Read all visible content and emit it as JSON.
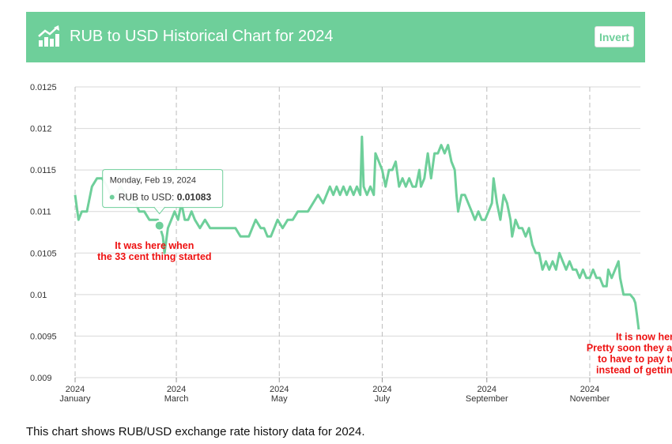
{
  "header": {
    "title": "RUB to USD Historical Chart for 2024",
    "invert_label": "Invert",
    "icon": "chart-growth-icon",
    "background": "#6ecf9a"
  },
  "caption": "This chart shows RUB/USD exchange rate history data for 2024.",
  "tooltip": {
    "date": "Monday, Feb 19, 2024",
    "series_label": "RUB to USD:",
    "value_text": "0.01083",
    "x": 50,
    "y": 0.01083
  },
  "annotations": [
    {
      "lines": [
        "It was here when",
        "the 33 cent thing started"
      ],
      "x": 47,
      "y": 0.01055
    },
    {
      "lines": [
        "It is now here.",
        "Pretty soon they are going",
        "to have to pay to post",
        "instead of getting paid"
      ],
      "x": 340,
      "y": 0.00945
    }
  ],
  "chart_data": {
    "type": "line",
    "title": "RUB to USD Historical Chart for 2024",
    "xlabel": "",
    "ylabel": "",
    "line_color": "#6ecf9a",
    "xlim": [
      0,
      335
    ],
    "ylim": [
      0.009,
      0.0125
    ],
    "y_ticks": [
      0.009,
      0.0095,
      0.01,
      0.0105,
      0.011,
      0.0115,
      0.012,
      0.0125
    ],
    "y_tick_labels": [
      "0.009",
      "0.0095",
      "0.01",
      "0.0105",
      "0.011",
      "0.0115",
      "0.012",
      "0.0125"
    ],
    "x_ticks": [
      {
        "x": 0,
        "label": [
          "2024",
          "January"
        ]
      },
      {
        "x": 60,
        "label": [
          "2024",
          "March"
        ]
      },
      {
        "x": 121,
        "label": [
          "2024",
          "May"
        ]
      },
      {
        "x": 182,
        "label": [
          "2024",
          "July"
        ]
      },
      {
        "x": 244,
        "label": [
          "2024",
          "September"
        ]
      },
      {
        "x": 305,
        "label": [
          "2024",
          "November"
        ]
      }
    ],
    "grid": true,
    "series": [
      {
        "values": [
          [
            0,
            0.0112
          ],
          [
            2,
            0.0109
          ],
          [
            4,
            0.011
          ],
          [
            7,
            0.011
          ],
          [
            10,
            0.0113
          ],
          [
            13,
            0.0114
          ],
          [
            16,
            0.0114
          ],
          [
            19,
            0.0113
          ],
          [
            21,
            0.0112
          ],
          [
            24,
            0.0112
          ],
          [
            27,
            0.0113
          ],
          [
            30,
            0.0112
          ],
          [
            33,
            0.0111
          ],
          [
            36,
            0.0111
          ],
          [
            38,
            0.011
          ],
          [
            41,
            0.011
          ],
          [
            44,
            0.0109
          ],
          [
            47,
            0.0109
          ],
          [
            49,
            0.0109
          ],
          [
            50,
            0.01083
          ],
          [
            52,
            0.0107
          ],
          [
            53,
            0.0105
          ],
          [
            55,
            0.0108
          ],
          [
            57,
            0.0109
          ],
          [
            59,
            0.011
          ],
          [
            61,
            0.0109
          ],
          [
            63,
            0.0111
          ],
          [
            65,
            0.0109
          ],
          [
            67,
            0.0109
          ],
          [
            69,
            0.011
          ],
          [
            71,
            0.0109
          ],
          [
            74,
            0.0108
          ],
          [
            77,
            0.0109
          ],
          [
            80,
            0.0108
          ],
          [
            84,
            0.0108
          ],
          [
            88,
            0.0108
          ],
          [
            92,
            0.0108
          ],
          [
            95,
            0.0108
          ],
          [
            98,
            0.0107
          ],
          [
            100,
            0.0107
          ],
          [
            103,
            0.0107
          ],
          [
            105,
            0.0108
          ],
          [
            107,
            0.0109
          ],
          [
            110,
            0.0108
          ],
          [
            112,
            0.0108
          ],
          [
            114,
            0.0107
          ],
          [
            116,
            0.0107
          ],
          [
            118,
            0.0108
          ],
          [
            120,
            0.0109
          ],
          [
            123,
            0.0108
          ],
          [
            126,
            0.0109
          ],
          [
            129,
            0.0109
          ],
          [
            132,
            0.011
          ],
          [
            135,
            0.011
          ],
          [
            138,
            0.011
          ],
          [
            141,
            0.0111
          ],
          [
            144,
            0.0112
          ],
          [
            147,
            0.0111
          ],
          [
            149,
            0.0112
          ],
          [
            151,
            0.0113
          ],
          [
            153,
            0.0112
          ],
          [
            155,
            0.0113
          ],
          [
            157,
            0.0112
          ],
          [
            159,
            0.0113
          ],
          [
            161,
            0.0112
          ],
          [
            163,
            0.0113
          ],
          [
            165,
            0.0112
          ],
          [
            167,
            0.0113
          ],
          [
            169,
            0.0112
          ],
          [
            170,
            0.0119
          ],
          [
            171,
            0.0113
          ],
          [
            173,
            0.0112
          ],
          [
            175,
            0.0113
          ],
          [
            177,
            0.0112
          ],
          [
            178,
            0.0117
          ],
          [
            180,
            0.0116
          ],
          [
            182,
            0.0115
          ],
          [
            184,
            0.0113
          ],
          [
            186,
            0.0115
          ],
          [
            188,
            0.0115
          ],
          [
            190,
            0.0116
          ],
          [
            192,
            0.0113
          ],
          [
            194,
            0.0114
          ],
          [
            196,
            0.0113
          ],
          [
            198,
            0.0114
          ],
          [
            200,
            0.0113
          ],
          [
            202,
            0.0113
          ],
          [
            204,
            0.0115
          ],
          [
            205,
            0.0113
          ],
          [
            207,
            0.0114
          ],
          [
            209,
            0.0117
          ],
          [
            211,
            0.0114
          ],
          [
            213,
            0.0117
          ],
          [
            215,
            0.0117
          ],
          [
            217,
            0.0118
          ],
          [
            219,
            0.0117
          ],
          [
            221,
            0.0118
          ],
          [
            223,
            0.0116
          ],
          [
            225,
            0.0115
          ],
          [
            226,
            0.0112
          ],
          [
            227,
            0.011
          ],
          [
            229,
            0.0112
          ],
          [
            231,
            0.0112
          ],
          [
            233,
            0.0111
          ],
          [
            235,
            0.011
          ],
          [
            237,
            0.0109
          ],
          [
            239,
            0.011
          ],
          [
            241,
            0.0109
          ],
          [
            243,
            0.0109
          ],
          [
            245,
            0.011
          ],
          [
            247,
            0.0111
          ],
          [
            248,
            0.0114
          ],
          [
            250,
            0.0111
          ],
          [
            252,
            0.0109
          ],
          [
            254,
            0.0112
          ],
          [
            256,
            0.0111
          ],
          [
            258,
            0.0109
          ],
          [
            259,
            0.0107
          ],
          [
            261,
            0.0109
          ],
          [
            263,
            0.0108
          ],
          [
            265,
            0.0108
          ],
          [
            267,
            0.0107
          ],
          [
            269,
            0.0108
          ],
          [
            271,
            0.0106
          ],
          [
            273,
            0.0105
          ],
          [
            275,
            0.0105
          ],
          [
            277,
            0.0103
          ],
          [
            279,
            0.0104
          ],
          [
            281,
            0.0103
          ],
          [
            283,
            0.0104
          ],
          [
            285,
            0.0103
          ],
          [
            287,
            0.0105
          ],
          [
            289,
            0.0104
          ],
          [
            291,
            0.0103
          ],
          [
            293,
            0.0104
          ],
          [
            295,
            0.0103
          ],
          [
            297,
            0.0103
          ],
          [
            299,
            0.0102
          ],
          [
            301,
            0.0103
          ],
          [
            303,
            0.0102
          ],
          [
            305,
            0.0102
          ],
          [
            307,
            0.0103
          ],
          [
            309,
            0.0102
          ],
          [
            311,
            0.0102
          ],
          [
            313,
            0.0101
          ],
          [
            315,
            0.0101
          ],
          [
            316,
            0.0103
          ],
          [
            318,
            0.0102
          ],
          [
            320,
            0.0103
          ],
          [
            322,
            0.0104
          ],
          [
            323,
            0.0102
          ],
          [
            325,
            0.01
          ],
          [
            327,
            0.01
          ],
          [
            329,
            0.01
          ],
          [
            331,
            0.00995
          ],
          [
            332,
            0.0099
          ],
          [
            333,
            0.00975
          ],
          [
            334,
            0.00958
          ]
        ]
      }
    ]
  }
}
